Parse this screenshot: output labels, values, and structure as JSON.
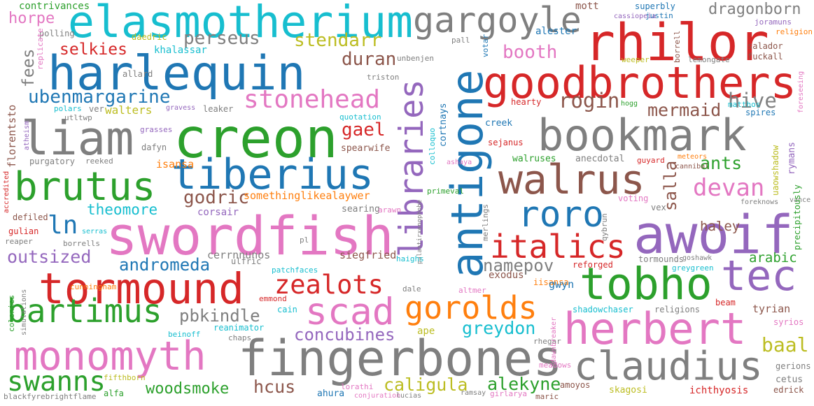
{
  "palette": [
    "#1f77b4",
    "#ff7f0e",
    "#2ca02c",
    "#d62728",
    "#9467bd",
    "#8c564b",
    "#e377c2",
    "#7f7f7f",
    "#bcbd22",
    "#17becf"
  ],
  "words": [
    {
      "text": "swordfish",
      "color": "#e377c2"
    },
    {
      "text": "creon",
      "color": "#2ca02c"
    },
    {
      "text": "fingerbones",
      "color": "#7f7f7f"
    },
    {
      "text": "harlequin",
      "color": "#1f77b4"
    },
    {
      "text": "elasmotherium",
      "color": "#17becf"
    },
    {
      "text": "rhilor",
      "color": "#d62728"
    },
    {
      "text": "awoif",
      "color": "#9467bd"
    },
    {
      "text": "antigone",
      "color": "#1f77b4"
    },
    {
      "text": "bookmark",
      "color": "#7f7f7f"
    },
    {
      "text": "goodbrothers",
      "color": "#d62728"
    },
    {
      "text": "tiberius",
      "color": "#1f77b4"
    },
    {
      "text": "tormound",
      "color": "#d62728"
    },
    {
      "text": "tobho",
      "color": "#2ca02c"
    },
    {
      "text": "tec",
      "color": "#9467bd"
    },
    {
      "text": "herbert",
      "color": "#e377c2"
    },
    {
      "text": "claudius",
      "color": "#7f7f7f"
    },
    {
      "text": "monomyth",
      "color": "#e377c2"
    },
    {
      "text": "liam",
      "color": "#7f7f7f"
    },
    {
      "text": "walrus",
      "color": "#8c564b"
    },
    {
      "text": "libraries",
      "color": "#9467bd"
    },
    {
      "text": "brutus",
      "color": "#2ca02c"
    },
    {
      "text": "roro",
      "color": "#1f77b4"
    },
    {
      "text": "scad",
      "color": "#e377c2"
    },
    {
      "text": "gargoyle",
      "color": "#7f7f7f"
    },
    {
      "text": "italics",
      "color": "#d62728"
    },
    {
      "text": "bartimus",
      "color": "#2ca02c"
    },
    {
      "text": "gorolds",
      "color": "#ff7f0e"
    },
    {
      "text": "zealots",
      "color": "#d62728"
    },
    {
      "text": "stonehead",
      "color": "#e377c2"
    },
    {
      "text": "swanns",
      "color": "#2ca02c"
    },
    {
      "text": "devan",
      "color": "#e377c2"
    },
    {
      "text": "ln",
      "color": "#1f77b4"
    },
    {
      "text": "ubenmargarine",
      "color": "#1f77b4"
    },
    {
      "text": "dragonborn",
      "color": "#7f7f7f"
    },
    {
      "text": "perseus",
      "color": "#7f7f7f"
    },
    {
      "text": "stendarr",
      "color": "#bcbd22"
    },
    {
      "text": "selkies",
      "color": "#d62728"
    },
    {
      "text": "duran",
      "color": "#8c564b"
    },
    {
      "text": "booth",
      "color": "#e377c2"
    },
    {
      "text": "rogin",
      "color": "#8c564b"
    },
    {
      "text": "hive",
      "color": "#7f7f7f"
    },
    {
      "text": "mermaid",
      "color": "#8c564b"
    },
    {
      "text": "ants",
      "color": "#2ca02c"
    },
    {
      "text": "salla",
      "color": "#8c564b"
    },
    {
      "text": "gael",
      "color": "#d62728"
    },
    {
      "text": "godric",
      "color": "#8c564b"
    },
    {
      "text": "theomore",
      "color": "#17becf"
    },
    {
      "text": "outsized",
      "color": "#9467bd"
    },
    {
      "text": "andromeda",
      "color": "#1f77b4"
    },
    {
      "text": "namepov",
      "color": "#7f7f7f"
    },
    {
      "text": "pbkindle",
      "color": "#7f7f7f"
    },
    {
      "text": "concubines",
      "color": "#9467bd"
    },
    {
      "text": "greydon",
      "color": "#17becf"
    },
    {
      "text": "caligula",
      "color": "#bcbd22"
    },
    {
      "text": "alekyne",
      "color": "#2ca02c"
    },
    {
      "text": "woodsmoke",
      "color": "#2ca02c"
    },
    {
      "text": "hcus",
      "color": "#8c564b"
    },
    {
      "text": "baal",
      "color": "#bcbd22"
    },
    {
      "text": "arabic",
      "color": "#2ca02c"
    },
    {
      "text": "haley",
      "color": "#8c564b"
    },
    {
      "text": "horpe",
      "color": "#e377c2"
    },
    {
      "text": "fees",
      "color": "#7f7f7f"
    },
    {
      "text": "walters",
      "color": "#bcbd22"
    },
    {
      "text": "florentsto",
      "color": "#8c564b"
    },
    {
      "text": "contrivances",
      "color": "#2ca02c"
    },
    {
      "text": "polling",
      "color": "#7f7f7f"
    },
    {
      "text": "daedric",
      "color": "#bcbd22"
    },
    {
      "text": "khalassar",
      "color": "#17becf"
    },
    {
      "text": "allard",
      "color": "#7f7f7f"
    },
    {
      "text": "replicate",
      "color": "#e377c2"
    },
    {
      "text": "polars",
      "color": "#17becf"
    },
    {
      "text": "ver",
      "color": "#7f7f7f"
    },
    {
      "text": "utltwp",
      "color": "#7f7f7f"
    },
    {
      "text": "gravess",
      "color": "#9467bd"
    },
    {
      "text": "leaker",
      "color": "#7f7f7f"
    },
    {
      "text": "atheism",
      "color": "#9467bd"
    },
    {
      "text": "grasses",
      "color": "#9467bd"
    },
    {
      "text": "dafyn",
      "color": "#7f7f7f"
    },
    {
      "text": "purgatory",
      "color": "#7f7f7f"
    },
    {
      "text": "reeked",
      "color": "#7f7f7f"
    },
    {
      "text": "accredited",
      "color": "#d62728"
    },
    {
      "text": "defiled",
      "color": "#8c564b"
    },
    {
      "text": "gulian",
      "color": "#d62728"
    },
    {
      "text": "reaper",
      "color": "#7f7f7f"
    },
    {
      "text": "serras",
      "color": "#17becf"
    },
    {
      "text": "borrells",
      "color": "#7f7f7f"
    },
    {
      "text": "corsair",
      "color": "#9467bd"
    },
    {
      "text": "isansa",
      "color": "#ff7f0e"
    },
    {
      "text": "cunningham",
      "color": "#ff7f0e"
    },
    {
      "text": "somethinglikealaywer",
      "color": "#ff7f0e"
    },
    {
      "text": "spearwife",
      "color": "#8c564b"
    },
    {
      "text": "unbenjen",
      "color": "#7f7f7f"
    },
    {
      "text": "triston",
      "color": "#7f7f7f"
    },
    {
      "text": "quotation",
      "color": "#17becf"
    },
    {
      "text": "cortnays",
      "color": "#1f77b4"
    },
    {
      "text": "colloquo",
      "color": "#17becf"
    },
    {
      "text": "pall",
      "color": "#7f7f7f"
    },
    {
      "text": "votar",
      "color": "#1f77b4"
    },
    {
      "text": "mott",
      "color": "#8c564b"
    },
    {
      "text": "superbly",
      "color": "#1f77b4"
    },
    {
      "text": "justin",
      "color": "#1f77b4"
    },
    {
      "text": "cassiopeia",
      "color": "#9467bd"
    },
    {
      "text": "borrell",
      "color": "#8c564b"
    },
    {
      "text": "joramuns",
      "color": "#9467bd"
    },
    {
      "text": "religion",
      "color": "#ff7f0e"
    },
    {
      "text": "alester",
      "color": "#1f77b4"
    },
    {
      "text": "weeper",
      "color": "#bcbd22"
    },
    {
      "text": "lemongate",
      "color": "#7f7f7f"
    },
    {
      "text": "salador",
      "color": "#8c564b"
    },
    {
      "text": "fuckall",
      "color": "#8c564b"
    },
    {
      "text": "hearty",
      "color": "#d62728"
    },
    {
      "text": "hogg",
      "color": "#2ca02c"
    },
    {
      "text": "matthos",
      "color": "#17becf"
    },
    {
      "text": "spires",
      "color": "#1f77b4"
    },
    {
      "text": "foreseeing",
      "color": "#e377c2"
    },
    {
      "text": "creek",
      "color": "#1f77b4"
    },
    {
      "text": "sejanus",
      "color": "#d62728"
    },
    {
      "text": "rymans",
      "color": "#9467bd"
    },
    {
      "text": "uaowshadow",
      "color": "#bcbd22"
    },
    {
      "text": "walruses",
      "color": "#2ca02c"
    },
    {
      "text": "anecdotal",
      "color": "#7f7f7f"
    },
    {
      "text": "guyard",
      "color": "#d62728"
    },
    {
      "text": "meteors",
      "color": "#ff7f0e"
    },
    {
      "text": "cannibal",
      "color": "#8c564b"
    },
    {
      "text": "ashaya",
      "color": "#e377c2"
    },
    {
      "text": "primeval",
      "color": "#2ca02c"
    },
    {
      "text": "vex",
      "color": "#7f7f7f"
    },
    {
      "text": "voting",
      "color": "#e377c2"
    },
    {
      "text": "foreknows",
      "color": "#7f7f7f"
    },
    {
      "text": "vance",
      "color": "#7f7f7f"
    },
    {
      "text": "precipitously",
      "color": "#2ca02c"
    },
    {
      "text": "merlings",
      "color": "#7f7f7f"
    },
    {
      "text": "qybrun",
      "color": "#7f7f7f"
    },
    {
      "text": "searing",
      "color": "#7f7f7f"
    },
    {
      "text": "arawn",
      "color": "#e377c2"
    },
    {
      "text": "palantirxenophobe",
      "color": "#7f7f7f"
    },
    {
      "text": "pl",
      "color": "#7f7f7f"
    },
    {
      "text": "cerrnnunos",
      "color": "#7f7f7f"
    },
    {
      "text": "siegfried",
      "color": "#8c564b"
    },
    {
      "text": "ulfric",
      "color": "#7f7f7f"
    },
    {
      "text": "patchfaces",
      "color": "#17becf"
    },
    {
      "text": "haighs",
      "color": "#17becf"
    },
    {
      "text": "reforged",
      "color": "#d62728"
    },
    {
      "text": "tormounds",
      "color": "#7f7f7f"
    },
    {
      "text": "goshawk",
      "color": "#7f7f7f"
    },
    {
      "text": "greygreen",
      "color": "#17becf"
    },
    {
      "text": "exodus",
      "color": "#8c564b"
    },
    {
      "text": "iisansa",
      "color": "#ff7f0e"
    },
    {
      "text": "gwyn",
      "color": "#1f77b4"
    },
    {
      "text": "dale",
      "color": "#7f7f7f"
    },
    {
      "text": "altmer",
      "color": "#e377c2"
    },
    {
      "text": "emmond",
      "color": "#d62728"
    },
    {
      "text": "cain",
      "color": "#17becf"
    },
    {
      "text": "colonies",
      "color": "#2ca02c"
    },
    {
      "text": "simulations",
      "color": "#7f7f7f"
    },
    {
      "text": "reanimator",
      "color": "#17becf"
    },
    {
      "text": "beinoff",
      "color": "#17becf"
    },
    {
      "text": "chaps",
      "color": "#7f7f7f"
    },
    {
      "text": "ape",
      "color": "#bcbd22"
    },
    {
      "text": "rhegar",
      "color": "#7f7f7f"
    },
    {
      "text": "dawnbreaker",
      "color": "#e377c2"
    },
    {
      "text": "shadowchaser",
      "color": "#17becf"
    },
    {
      "text": "religions",
      "color": "#7f7f7f"
    },
    {
      "text": "beam",
      "color": "#d62728"
    },
    {
      "text": "tyrian",
      "color": "#8c564b"
    },
    {
      "text": "syrios",
      "color": "#e377c2"
    },
    {
      "text": "gerions",
      "color": "#7f7f7f"
    },
    {
      "text": "cetus",
      "color": "#7f7f7f"
    },
    {
      "text": "edrick",
      "color": "#8c564b"
    },
    {
      "text": "meadows",
      "color": "#e377c2"
    },
    {
      "text": "amoyos",
      "color": "#8c564b"
    },
    {
      "text": "skagosi",
      "color": "#bcbd22"
    },
    {
      "text": "ichthyosis",
      "color": "#d62728"
    },
    {
      "text": "fifthborn",
      "color": "#bcbd22"
    },
    {
      "text": "alfa",
      "color": "#2ca02c"
    },
    {
      "text": "blackfyrebrightflame",
      "color": "#7f7f7f"
    },
    {
      "text": "lorathi",
      "color": "#e377c2"
    },
    {
      "text": "ahura",
      "color": "#1f77b4"
    },
    {
      "text": "conjuration",
      "color": "#e377c2"
    },
    {
      "text": "lucias",
      "color": "#7f7f7f"
    },
    {
      "text": "ramsay",
      "color": "#7f7f7f"
    },
    {
      "text": "girlarya",
      "color": "#e377c2"
    },
    {
      "text": "maric",
      "color": "#8c564b"
    }
  ]
}
